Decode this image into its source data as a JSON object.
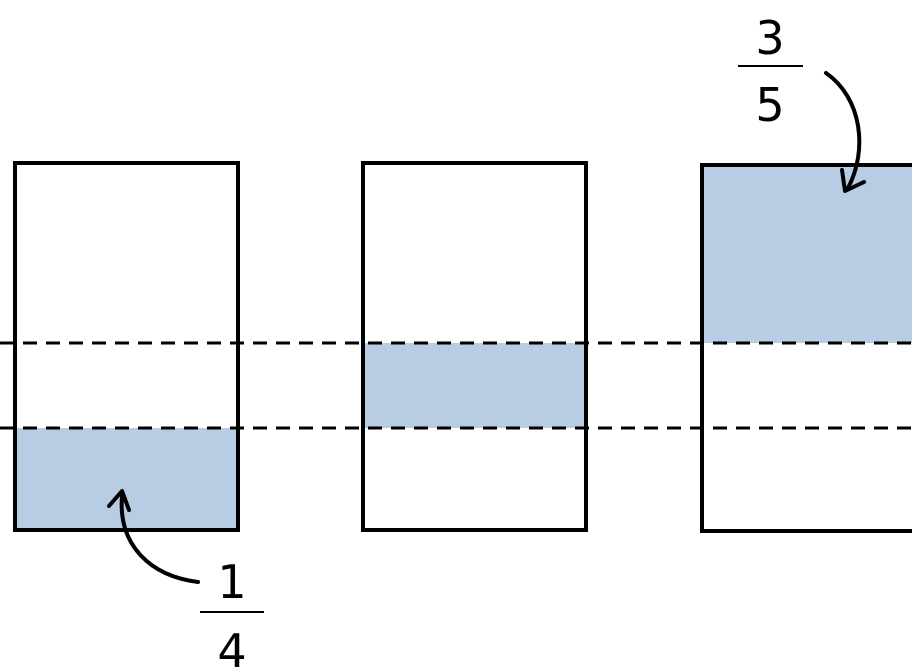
{
  "fractions": {
    "left": {
      "numerator": "1",
      "denominator": "4"
    },
    "right": {
      "numerator": "3",
      "denominator": "5"
    }
  },
  "colors": {
    "shade": "#b8cce4",
    "stroke": "#000000",
    "background": "#ffffff"
  }
}
